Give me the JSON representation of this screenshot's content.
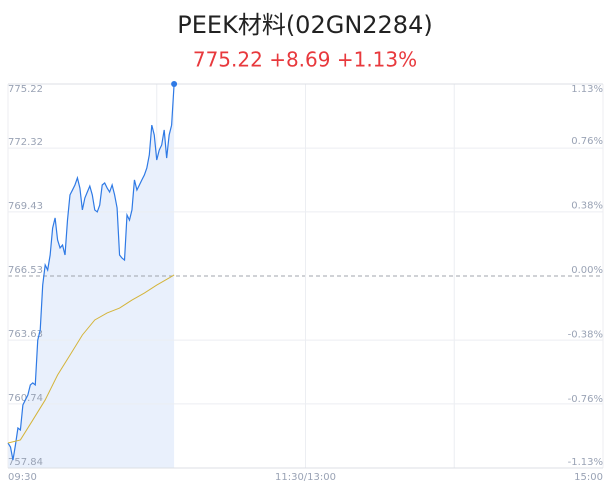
{
  "chart_data": {
    "type": "line",
    "title": "PEEK材料(02GN2284)",
    "subtitle": "775.22 +8.69 +1.13%",
    "xlim": [
      0,
      240
    ],
    "xticks": [
      {
        "value": 0,
        "label": "09:30"
      },
      {
        "value": 120,
        "label": "11:30/13:00"
      },
      {
        "value": 240,
        "label": "15:00"
      }
    ],
    "ylim": [
      757.84,
      775.22
    ],
    "yticks": [
      775.22,
      772.32,
      769.43,
      766.53,
      763.63,
      760.74,
      757.84
    ],
    "y2lim": [
      -1.13,
      1.13
    ],
    "y2ticks": [
      {
        "value": 1.13,
        "label": "1.13%"
      },
      {
        "value": 0.76,
        "label": "0.76%"
      },
      {
        "value": 0.38,
        "label": "0.38%"
      },
      {
        "value": 0,
        "label": "0.00%"
      },
      {
        "value": -0.38,
        "label": "-0.38%"
      },
      {
        "value": -0.76,
        "label": "-0.76%"
      },
      {
        "value": -1.13,
        "label": "-1.13%"
      }
    ],
    "base": 766.53,
    "grid": true,
    "price": {
      "color": "#2f7ae5",
      "fill": "#e9f0fc",
      "x": [
        0,
        1,
        2,
        3,
        4,
        5,
        6,
        7,
        8,
        9,
        10,
        11,
        12,
        13,
        14,
        15,
        16,
        17,
        18,
        19,
        20,
        21,
        22,
        23,
        24,
        25,
        26,
        27,
        28,
        29,
        30,
        31,
        32,
        33,
        34,
        35,
        36,
        37,
        38,
        39,
        40,
        41,
        42,
        43,
        44,
        45,
        46,
        47,
        48,
        49,
        50,
        51,
        52,
        53,
        54,
        55,
        56,
        57,
        58,
        59,
        60,
        61,
        62,
        63,
        64,
        65,
        66,
        67
      ],
      "values": [
        758.97,
        758.79,
        758.2,
        758.88,
        759.65,
        759.56,
        760.69,
        760.92,
        761.14,
        761.6,
        761.69,
        761.6,
        763.63,
        764.09,
        766.12,
        767.03,
        766.8,
        767.48,
        768.7,
        769.16,
        768.16,
        767.8,
        767.93,
        767.48,
        769.06,
        770.2,
        770.42,
        770.65,
        770.97,
        770.51,
        769.52,
        770.06,
        770.33,
        770.6,
        770.2,
        769.52,
        769.43,
        769.74,
        770.65,
        770.74,
        770.51,
        770.33,
        770.65,
        770.2,
        769.61,
        767.48,
        767.34,
        767.25,
        769.29,
        769.06,
        769.52,
        770.88,
        770.42,
        770.65,
        770.88,
        771.1,
        771.42,
        772.01,
        773.36,
        772.91,
        771.78,
        772.23,
        772.46,
        773.14,
        771.87,
        772.91,
        773.36,
        775.22
      ]
    },
    "average": {
      "color": "#d4b43a",
      "x": [
        0,
        5,
        10,
        15,
        20,
        25,
        30,
        35,
        40,
        45,
        50,
        55,
        60,
        65,
        67
      ],
      "values": [
        758.97,
        759.11,
        760.01,
        760.92,
        762.05,
        762.95,
        763.86,
        764.54,
        764.86,
        765.08,
        765.44,
        765.76,
        766.12,
        766.44,
        766.58
      ]
    }
  }
}
